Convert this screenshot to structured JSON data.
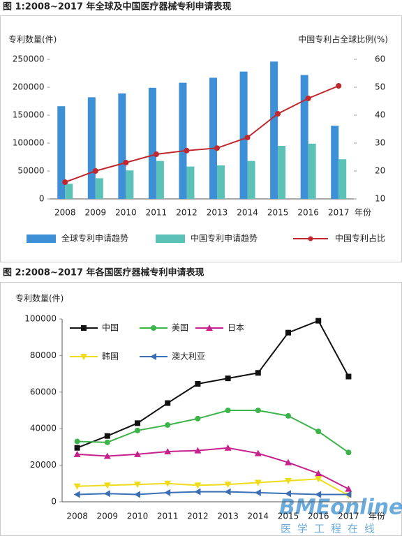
{
  "chart_data": [
    {
      "type": "combo",
      "title": "图 1:2008~2017 年全球及中国医疗器械专利申请表现",
      "ylabel": "专利数量(件)",
      "y2label": "中国专利占全球比例(%)",
      "xlabel": "年份",
      "categories": [
        "2008",
        "2009",
        "2010",
        "2011",
        "2012",
        "2013",
        "2014",
        "2015",
        "2016",
        "2017"
      ],
      "series": [
        {
          "name": "全球专利申请趋势",
          "type": "bar",
          "color": "#3d8fd6",
          "values": [
            166000,
            182000,
            189000,
            199000,
            208000,
            217000,
            228000,
            246000,
            222000,
            131000
          ]
        },
        {
          "name": "中国专利申请趋势",
          "type": "bar",
          "color": "#5cc2b8",
          "values": [
            27000,
            37000,
            51000,
            68000,
            58000,
            60000,
            68000,
            95000,
            99000,
            71000
          ]
        },
        {
          "name": "中国专利占比",
          "type": "line",
          "axis": "y2",
          "color": "#c0282d",
          "marker": "circle",
          "values": [
            16,
            20,
            23,
            26,
            27.3,
            28.2,
            32,
            40.5,
            46,
            50.5
          ]
        }
      ],
      "ylim": [
        0,
        250000
      ],
      "yticks": [
        0,
        50000,
        100000,
        150000,
        200000,
        250000
      ],
      "y2lim": [
        10,
        60
      ],
      "y2ticks": [
        10,
        20,
        30,
        40,
        50,
        60
      ],
      "legend": "bottom"
    },
    {
      "type": "line",
      "title": "图 2:2008~2017 年各国医疗器械专利申请表现",
      "ylabel": "专利数量(件)",
      "xlabel": "年份",
      "categories": [
        "2008",
        "2009",
        "2010",
        "2011",
        "2012",
        "2013",
        "2014",
        "2015",
        "2016",
        "2017"
      ],
      "series": [
        {
          "name": "中国",
          "color": "#111111",
          "marker": "square",
          "values": [
            29500,
            36000,
            43000,
            54000,
            64500,
            67500,
            70500,
            92500,
            99000,
            68500
          ]
        },
        {
          "name": "美国",
          "color": "#3cb44a",
          "marker": "circle",
          "values": [
            33000,
            32500,
            39000,
            42000,
            45500,
            50000,
            50000,
            47000,
            38500,
            27000
          ]
        },
        {
          "name": "日本",
          "color": "#c6218d",
          "marker": "triangle-up",
          "values": [
            26000,
            25000,
            26000,
            27500,
            28000,
            29500,
            26500,
            21500,
            15500,
            7000
          ]
        },
        {
          "name": "韩国",
          "color": "#eedc1a",
          "marker": "triangle-down",
          "values": [
            8500,
            9000,
            9500,
            10000,
            9000,
            9500,
            10500,
            11500,
            12500,
            3500
          ]
        },
        {
          "name": "澳大利亚",
          "color": "#3b6fb5",
          "marker": "triangle-left",
          "values": [
            4000,
            4500,
            4000,
            5000,
            5500,
            5500,
            5000,
            4500,
            4000,
            4000
          ]
        }
      ],
      "ylim": [
        0,
        100000
      ],
      "yticks": [
        0,
        20000,
        40000,
        60000,
        80000,
        100000
      ],
      "legend": "upper left"
    }
  ],
  "watermark": {
    "logo": "BMEonline",
    "text": "医学工程在线"
  }
}
